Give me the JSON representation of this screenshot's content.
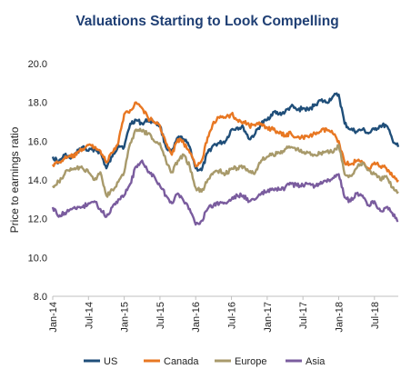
{
  "colors": {
    "title": "#1f3f74",
    "axis": "#bfbfbf",
    "US": "#1f4e79",
    "Canada": "#e87722",
    "Europe": "#a89a6b",
    "Asia": "#7a5c9e"
  },
  "chart_data": {
    "type": "line",
    "title": "Valuations Starting to Look Compelling",
    "xlabel": "",
    "ylabel": "Price to earnings ratio",
    "ylim": [
      8.0,
      20.0
    ],
    "yticks": [
      "8.0",
      "10.0",
      "12.0",
      "14.0",
      "16.0",
      "18.0",
      "20.0"
    ],
    "xlim": [
      "2014-01",
      "2018-11"
    ],
    "xticks": [
      "Jan-14",
      "Jul-14",
      "Jan-15",
      "Jul-15",
      "Jan-16",
      "Jul-16",
      "Jan-17",
      "Jul-17",
      "Jan-18",
      "Jul-18"
    ],
    "grid": false,
    "legend": "bottom",
    "x": [
      "2014-01",
      "2014-02",
      "2014-03",
      "2014-04",
      "2014-05",
      "2014-06",
      "2014-07",
      "2014-08",
      "2014-09",
      "2014-10",
      "2014-11",
      "2014-12",
      "2015-01",
      "2015-02",
      "2015-03",
      "2015-04",
      "2015-05",
      "2015-06",
      "2015-07",
      "2015-08",
      "2015-09",
      "2015-10",
      "2015-11",
      "2015-12",
      "2016-01",
      "2016-02",
      "2016-03",
      "2016-04",
      "2016-05",
      "2016-06",
      "2016-07",
      "2016-08",
      "2016-09",
      "2016-10",
      "2016-11",
      "2016-12",
      "2017-01",
      "2017-02",
      "2017-03",
      "2017-04",
      "2017-05",
      "2017-06",
      "2017-07",
      "2017-08",
      "2017-09",
      "2017-10",
      "2017-11",
      "2017-12",
      "2018-01",
      "2018-02",
      "2018-03",
      "2018-04",
      "2018-05",
      "2018-06",
      "2018-07",
      "2018-08",
      "2018-09",
      "2018-10",
      "2018-11"
    ],
    "series": [
      {
        "name": "US",
        "values": [
          15.2,
          14.9,
          15.3,
          15.1,
          15.4,
          15.7,
          15.5,
          15.6,
          15.4,
          14.6,
          15.2,
          15.8,
          15.7,
          16.9,
          17.1,
          16.9,
          17.1,
          17.0,
          16.8,
          15.7,
          15.4,
          16.2,
          16.1,
          15.7,
          14.6,
          14.5,
          15.4,
          15.8,
          15.9,
          16.0,
          16.6,
          16.7,
          16.7,
          16.1,
          16.4,
          16.9,
          17.1,
          17.5,
          17.4,
          17.5,
          17.8,
          17.6,
          17.7,
          17.6,
          17.9,
          18.1,
          18.0,
          18.3,
          18.4,
          16.9,
          16.6,
          16.5,
          16.6,
          16.4,
          16.6,
          16.8,
          16.8,
          16.1,
          15.7
        ]
      },
      {
        "name": "Canada",
        "values": [
          14.8,
          14.9,
          15.1,
          15.2,
          15.3,
          15.6,
          15.8,
          15.7,
          15.5,
          14.9,
          15.4,
          15.9,
          17.4,
          17.6,
          18.0,
          17.7,
          17.2,
          17.0,
          16.8,
          15.9,
          15.3,
          16.1,
          15.9,
          15.4,
          14.7,
          15.0,
          16.2,
          17.0,
          17.2,
          17.2,
          17.4,
          17.1,
          17.0,
          16.8,
          16.8,
          16.9,
          16.7,
          16.6,
          16.4,
          16.3,
          16.4,
          16.2,
          16.2,
          16.2,
          16.4,
          16.5,
          16.6,
          16.4,
          16.0,
          14.9,
          14.8,
          15.0,
          14.9,
          14.6,
          14.9,
          14.7,
          14.6,
          14.2,
          14.0
        ]
      },
      {
        "name": "Europe",
        "values": [
          13.7,
          13.9,
          14.3,
          14.6,
          14.6,
          14.6,
          14.4,
          14.0,
          14.4,
          13.2,
          13.5,
          13.9,
          14.4,
          15.9,
          16.6,
          16.5,
          16.4,
          16.0,
          15.9,
          15.0,
          14.4,
          15.0,
          15.3,
          14.7,
          13.6,
          13.4,
          14.0,
          14.4,
          14.5,
          14.3,
          14.6,
          14.6,
          14.7,
          14.4,
          14.4,
          15.0,
          15.2,
          15.3,
          15.4,
          15.6,
          15.7,
          15.6,
          15.4,
          15.4,
          15.3,
          15.4,
          15.5,
          15.4,
          15.8,
          14.3,
          14.2,
          14.6,
          14.9,
          14.5,
          14.3,
          14.0,
          14.2,
          13.6,
          13.4
        ]
      },
      {
        "name": "Asia",
        "values": [
          12.6,
          12.1,
          12.3,
          12.5,
          12.5,
          12.6,
          12.8,
          12.9,
          12.5,
          12.1,
          12.6,
          13.0,
          13.2,
          13.8,
          14.7,
          15.0,
          14.4,
          14.2,
          13.7,
          13.2,
          12.8,
          13.3,
          12.9,
          12.5,
          11.7,
          11.9,
          12.5,
          12.7,
          12.8,
          12.8,
          13.0,
          13.2,
          13.2,
          12.9,
          13.0,
          13.3,
          13.4,
          13.5,
          13.5,
          13.6,
          13.8,
          13.7,
          13.7,
          13.8,
          13.7,
          13.9,
          13.9,
          14.1,
          14.3,
          13.1,
          12.9,
          13.3,
          13.2,
          12.7,
          12.9,
          12.4,
          12.6,
          12.3,
          11.9
        ]
      }
    ]
  }
}
